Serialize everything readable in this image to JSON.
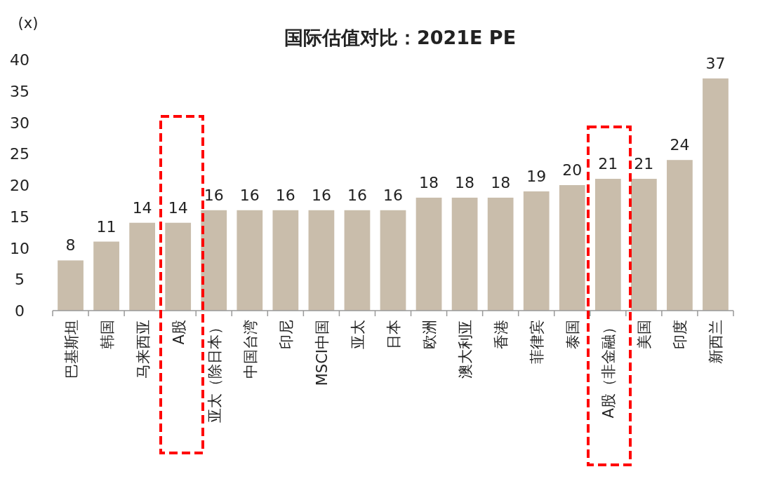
{
  "chart_data": {
    "type": "bar",
    "title": "国际估值对比：2021E PE",
    "ylabel": "(x)",
    "categories": [
      "巴基斯坦",
      "韩国",
      "马来西亚",
      "A股",
      "亚太（除日本）",
      "中国台湾",
      "印尼",
      "MSCI中国",
      "亚太",
      "日本",
      "欧洲",
      "澳大利亚",
      "香港",
      "菲律宾",
      "泰国",
      "A股（非金融）",
      "美国",
      "印度",
      "新西兰"
    ],
    "values": [
      8,
      11,
      14,
      14,
      16,
      16,
      16,
      16,
      16,
      16,
      18,
      18,
      18,
      19,
      20,
      21,
      21,
      24,
      37
    ],
    "color": "#c9bdab",
    "data_labels": true,
    "grid": false,
    "ylim": [
      0,
      40
    ],
    "yticks": [
      0,
      5,
      10,
      15,
      20,
      25,
      30,
      35,
      40
    ]
  }
}
